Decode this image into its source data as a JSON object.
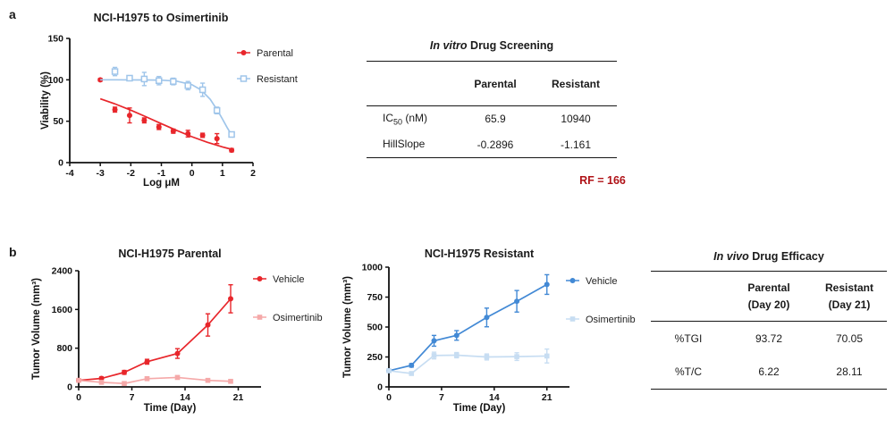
{
  "panel_a": {
    "label": "a",
    "table": {
      "title_italic": "In vitro",
      "title_rest": " Drug Screening",
      "col_headers": [
        "Parental",
        "Resistant"
      ],
      "rows": [
        {
          "label_pre": "IC",
          "label_sub": "50",
          "label_post": " (nM)",
          "values": [
            "65.9",
            "10940"
          ]
        },
        {
          "label_pre": "HillSlope",
          "label_sub": "",
          "label_post": "",
          "values": [
            "-0.2896",
            "-1.161"
          ]
        }
      ],
      "footnote": "RF = 166",
      "footnote_color": "#b01318"
    }
  },
  "panel_b": {
    "label": "b",
    "table": {
      "title_italic": "In vivo",
      "title_rest": " Drug Efficacy",
      "col_headers": [
        {
          "line1": "Parental",
          "line2": "(Day 20)"
        },
        {
          "line1": "Resistant",
          "line2": "(Day 21)"
        }
      ],
      "rows": [
        {
          "label": "%TGI",
          "values": [
            "93.72",
            "70.05"
          ]
        },
        {
          "label": "%T/C",
          "values": [
            "6.22",
            "28.11"
          ]
        }
      ]
    }
  },
  "chart_data": [
    {
      "id": "dose-response",
      "type": "scatter",
      "title": "NCI-H1975 to Osimertinib",
      "xlabel": "Log μM",
      "ylabel": "Viability (%)",
      "xlim": [
        -4,
        2
      ],
      "ylim": [
        0,
        150
      ],
      "xticks": [
        -4,
        -3,
        -2,
        -1,
        0,
        1,
        2
      ],
      "yticks": [
        0,
        50,
        100,
        150
      ],
      "grid": false,
      "legend_position": "right",
      "series": [
        {
          "name": "Parental",
          "color": "#e8262b",
          "marker": "circle",
          "connect": false,
          "x": [
            -3,
            -2.52,
            -2.04,
            -1.56,
            -1.08,
            -0.61,
            -0.13,
            0.35,
            0.82,
            1.3
          ],
          "y": [
            100,
            64,
            57,
            51,
            43,
            38,
            35,
            33,
            29,
            15
          ],
          "err": [
            1.5,
            3,
            9,
            3,
            3,
            2.5,
            4,
            2.5,
            6,
            2
          ],
          "fit_x": [
            -3,
            -2.5,
            -2,
            -1.5,
            -1,
            -0.5,
            0,
            0.5,
            1,
            1.35
          ],
          "fit_y": [
            77.1,
            70.7,
            63.3,
            55.3,
            47.0,
            38.9,
            31.3,
            24.6,
            18.9,
            15.6
          ]
        },
        {
          "name": "Resistant",
          "color": "#9fc5ea",
          "marker": "square-open",
          "connect": false,
          "x": [
            -2.52,
            -2.04,
            -1.56,
            -1.08,
            -0.61,
            -0.13,
            0.35,
            0.82,
            1.3
          ],
          "y": [
            110,
            102,
            101,
            99,
            98,
            93,
            88,
            63,
            34
          ],
          "err": [
            5,
            3,
            8,
            5,
            4,
            5,
            8,
            4,
            2
          ],
          "fit_x": [
            -3,
            -2.5,
            -2,
            -1.5,
            -1,
            -0.5,
            0,
            0.3,
            0.6,
            0.85,
            1,
            1.15,
            1.35
          ],
          "fit_y": [
            100,
            100,
            99.9,
            99.8,
            99.6,
            98.4,
            94.1,
            87.8,
            76.4,
            62.3,
            52.6,
            42.6,
            30.3
          ]
        }
      ]
    },
    {
      "id": "tumor-parental",
      "type": "line",
      "title": "NCI-H1975 Parental",
      "xlabel": "Time (Day)",
      "ylabel": "Tumor Volume (mm³)",
      "xlim": [
        0,
        24
      ],
      "ylim": [
        0,
        2400
      ],
      "xticks": [
        0,
        7,
        14,
        21
      ],
      "yticks": [
        0,
        800,
        1600,
        2400
      ],
      "grid": false,
      "legend_position": "right",
      "series": [
        {
          "name": "Vehicle",
          "color": "#e8262b",
          "marker": "circle",
          "connect": true,
          "x": [
            0,
            3,
            6,
            9,
            13,
            17,
            20
          ],
          "y": [
            135,
            175,
            300,
            520,
            690,
            1280,
            1820
          ],
          "err": [
            25,
            30,
            40,
            50,
            100,
            230,
            290
          ]
        },
        {
          "name": "Osimertinib",
          "color": "#f5a9a9",
          "marker": "square",
          "connect": true,
          "x": [
            0,
            3,
            6,
            9,
            13,
            17,
            20
          ],
          "y": [
            135,
            95,
            70,
            170,
            195,
            135,
            115
          ],
          "err": [
            15,
            15,
            15,
            25,
            35,
            20,
            20
          ]
        }
      ]
    },
    {
      "id": "tumor-resistant",
      "type": "line",
      "title": "NCI-H1975 Resistant",
      "xlabel": "Time (Day)",
      "ylabel": "Tumor Volume (mm³)",
      "xlim": [
        0,
        24
      ],
      "ylim": [
        0,
        1000
      ],
      "xticks": [
        0,
        7,
        14,
        21
      ],
      "yticks": [
        0,
        250,
        500,
        750,
        1000
      ],
      "grid": false,
      "legend_position": "right",
      "series": [
        {
          "name": "Vehicle",
          "color": "#4289d5",
          "marker": "circle",
          "connect": true,
          "x": [
            0,
            3,
            6,
            9,
            13,
            17,
            21
          ],
          "y": [
            135,
            180,
            385,
            430,
            580,
            715,
            855
          ],
          "err": [
            12,
            15,
            45,
            40,
            78,
            90,
            82
          ]
        },
        {
          "name": "Osimertinib",
          "color": "#c7ddf2",
          "marker": "square",
          "connect": true,
          "x": [
            0,
            3,
            6,
            9,
            13,
            17,
            21
          ],
          "y": [
            135,
            112,
            262,
            265,
            250,
            253,
            258
          ],
          "err": [
            10,
            10,
            28,
            22,
            25,
            32,
            58
          ]
        }
      ]
    }
  ]
}
